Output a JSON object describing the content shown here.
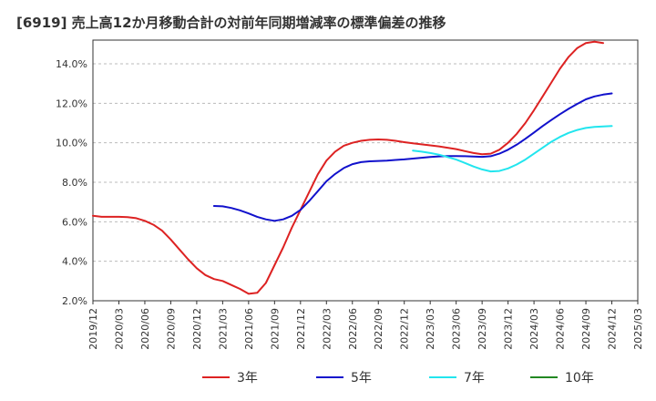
{
  "chart_data": {
    "type": "line",
    "title": "[6919]  売上高12か月移動合計の対前年同期増減率の標準偏差の推移",
    "xlabel": "",
    "ylabel": "",
    "ylim": [
      2.0,
      15.2
    ],
    "y_ticks": [
      "2.0%",
      "4.0%",
      "6.0%",
      "8.0%",
      "10.0%",
      "12.0%",
      "14.0%"
    ],
    "x_ticks": [
      "2019/12",
      "2020/03",
      "2020/06",
      "2020/09",
      "2020/12",
      "2021/03",
      "2021/06",
      "2021/09",
      "2021/12",
      "2022/03",
      "2022/06",
      "2022/09",
      "2022/12",
      "2023/03",
      "2023/06",
      "2023/09",
      "2023/12",
      "2024/03",
      "2024/06",
      "2024/09",
      "2024/12",
      "2025/03"
    ],
    "grid": "horizontal dashed",
    "legend_position": "bottom",
    "series": [
      {
        "name": "3年",
        "color": "#dd2222",
        "points": [
          [
            "2019/12",
            6.3
          ],
          [
            "2020/01",
            6.25
          ],
          [
            "2020/02",
            6.25
          ],
          [
            "2020/03",
            6.25
          ],
          [
            "2020/04",
            6.23
          ],
          [
            "2020/05",
            6.18
          ],
          [
            "2020/06",
            6.05
          ],
          [
            "2020/07",
            5.85
          ],
          [
            "2020/08",
            5.55
          ],
          [
            "2020/09",
            5.1
          ],
          [
            "2020/10",
            4.6
          ],
          [
            "2020/11",
            4.1
          ],
          [
            "2020/12",
            3.65
          ],
          [
            "2021/01",
            3.3
          ],
          [
            "2021/02",
            3.1
          ],
          [
            "2021/03",
            3.0
          ],
          [
            "2021/04",
            2.8
          ],
          [
            "2021/05",
            2.6
          ],
          [
            "2021/06",
            2.35
          ],
          [
            "2021/07",
            2.4
          ],
          [
            "2021/08",
            2.9
          ],
          [
            "2021/09",
            3.8
          ],
          [
            "2021/10",
            4.7
          ],
          [
            "2021/11",
            5.7
          ],
          [
            "2021/12",
            6.6
          ],
          [
            "2022/01",
            7.5
          ],
          [
            "2022/02",
            8.4
          ],
          [
            "2022/03",
            9.1
          ],
          [
            "2022/04",
            9.55
          ],
          [
            "2022/05",
            9.85
          ],
          [
            "2022/06",
            10.0
          ],
          [
            "2022/07",
            10.1
          ],
          [
            "2022/08",
            10.15
          ],
          [
            "2022/09",
            10.17
          ],
          [
            "2022/10",
            10.15
          ],
          [
            "2022/11",
            10.1
          ],
          [
            "2022/12",
            10.03
          ],
          [
            "2023/01",
            9.97
          ],
          [
            "2023/02",
            9.92
          ],
          [
            "2023/03",
            9.87
          ],
          [
            "2023/04",
            9.82
          ],
          [
            "2023/05",
            9.75
          ],
          [
            "2023/06",
            9.68
          ],
          [
            "2023/07",
            9.58
          ],
          [
            "2023/08",
            9.48
          ],
          [
            "2023/09",
            9.42
          ],
          [
            "2023/10",
            9.45
          ],
          [
            "2023/11",
            9.65
          ],
          [
            "2023/12",
            10.0
          ],
          [
            "2024/01",
            10.45
          ],
          [
            "2024/02",
            11.0
          ],
          [
            "2024/03",
            11.65
          ],
          [
            "2024/04",
            12.35
          ],
          [
            "2024/05",
            13.05
          ],
          [
            "2024/06",
            13.75
          ],
          [
            "2024/07",
            14.35
          ],
          [
            "2024/08",
            14.8
          ],
          [
            "2024/09",
            15.05
          ],
          [
            "2024/10",
            15.12
          ],
          [
            "2024/11",
            15.05
          ]
        ]
      },
      {
        "name": "5年",
        "color": "#1111cc",
        "points": [
          [
            "2021/02",
            6.8
          ],
          [
            "2021/03",
            6.78
          ],
          [
            "2021/04",
            6.7
          ],
          [
            "2021/05",
            6.58
          ],
          [
            "2021/06",
            6.42
          ],
          [
            "2021/07",
            6.25
          ],
          [
            "2021/08",
            6.12
          ],
          [
            "2021/09",
            6.05
          ],
          [
            "2021/10",
            6.12
          ],
          [
            "2021/11",
            6.3
          ],
          [
            "2021/12",
            6.6
          ],
          [
            "2022/01",
            7.05
          ],
          [
            "2022/02",
            7.55
          ],
          [
            "2022/03",
            8.05
          ],
          [
            "2022/04",
            8.42
          ],
          [
            "2022/05",
            8.72
          ],
          [
            "2022/06",
            8.92
          ],
          [
            "2022/07",
            9.02
          ],
          [
            "2022/08",
            9.06
          ],
          [
            "2022/09",
            9.08
          ],
          [
            "2022/10",
            9.1
          ],
          [
            "2022/11",
            9.13
          ],
          [
            "2022/12",
            9.16
          ],
          [
            "2023/01",
            9.2
          ],
          [
            "2023/02",
            9.24
          ],
          [
            "2023/03",
            9.28
          ],
          [
            "2023/04",
            9.31
          ],
          [
            "2023/05",
            9.33
          ],
          [
            "2023/06",
            9.33
          ],
          [
            "2023/07",
            9.32
          ],
          [
            "2023/08",
            9.3
          ],
          [
            "2023/09",
            9.29
          ],
          [
            "2023/10",
            9.32
          ],
          [
            "2023/11",
            9.45
          ],
          [
            "2023/12",
            9.65
          ],
          [
            "2024/01",
            9.9
          ],
          [
            "2024/02",
            10.2
          ],
          [
            "2024/03",
            10.52
          ],
          [
            "2024/04",
            10.85
          ],
          [
            "2024/05",
            11.15
          ],
          [
            "2024/06",
            11.45
          ],
          [
            "2024/07",
            11.72
          ],
          [
            "2024/08",
            11.97
          ],
          [
            "2024/09",
            12.2
          ],
          [
            "2024/10",
            12.35
          ],
          [
            "2024/11",
            12.44
          ],
          [
            "2024/12",
            12.5
          ]
        ]
      },
      {
        "name": "7年",
        "color": "#22e5ee",
        "points": [
          [
            "2023/01",
            9.6
          ],
          [
            "2023/02",
            9.55
          ],
          [
            "2023/03",
            9.48
          ],
          [
            "2023/04",
            9.4
          ],
          [
            "2023/05",
            9.28
          ],
          [
            "2023/06",
            9.15
          ],
          [
            "2023/07",
            8.98
          ],
          [
            "2023/08",
            8.8
          ],
          [
            "2023/09",
            8.65
          ],
          [
            "2023/10",
            8.55
          ],
          [
            "2023/11",
            8.57
          ],
          [
            "2023/12",
            8.7
          ],
          [
            "2024/01",
            8.9
          ],
          [
            "2024/02",
            9.15
          ],
          [
            "2024/03",
            9.45
          ],
          [
            "2024/04",
            9.75
          ],
          [
            "2024/05",
            10.05
          ],
          [
            "2024/06",
            10.3
          ],
          [
            "2024/07",
            10.5
          ],
          [
            "2024/08",
            10.65
          ],
          [
            "2024/09",
            10.75
          ],
          [
            "2024/10",
            10.8
          ],
          [
            "2024/11",
            10.83
          ],
          [
            "2024/12",
            10.85
          ]
        ]
      },
      {
        "name": "10年",
        "color": "#228822",
        "points": []
      }
    ]
  }
}
